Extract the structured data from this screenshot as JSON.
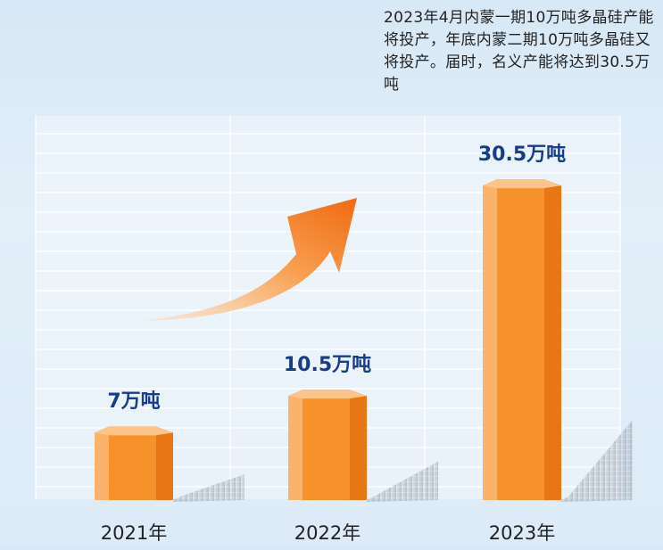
{
  "note": "2023年4月内蒙一期10万吨多晶硅产能将投产，年底内蒙二期10万吨多晶硅又将投产。届时，名义产能将达到30.5万吨",
  "chart_data": {
    "type": "bar",
    "categories": [
      "2021年",
      "2022年",
      "2023年"
    ],
    "values": [
      7,
      10.5,
      30.5
    ],
    "data_labels": [
      "7万吨",
      "10.5万吨",
      "30.5万吨"
    ],
    "unit": "万吨",
    "title": "",
    "xlabel": "",
    "ylabel": "",
    "ylim": [
      0,
      35
    ],
    "grid": true,
    "colors": {
      "bar_front": "#f7922a",
      "bar_light": "#fbb26a",
      "bar_dark": "#e97614",
      "arrow": "#f47f22",
      "label": "#163d8c"
    }
  }
}
